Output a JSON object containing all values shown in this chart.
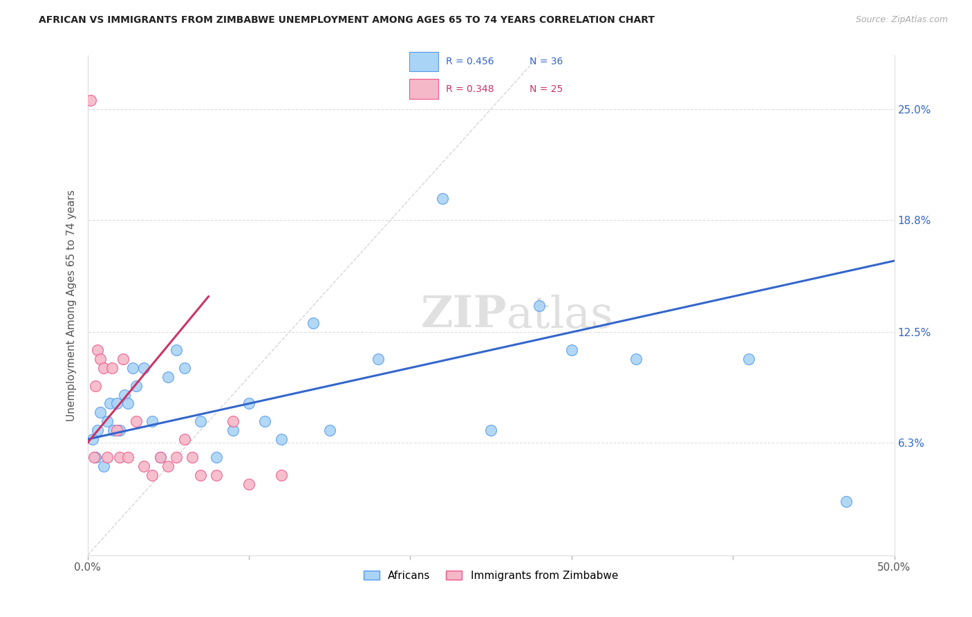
{
  "title": "AFRICAN VS IMMIGRANTS FROM ZIMBABWE UNEMPLOYMENT AMONG AGES 65 TO 74 YEARS CORRELATION CHART",
  "source": "Source: ZipAtlas.com",
  "ylabel_label": "Unemployment Among Ages 65 to 74 years",
  "legend_labels": [
    "Africans",
    "Immigrants from Zimbabwe"
  ],
  "legend_r_blue": "R = 0.456",
  "legend_n_blue": "N = 36",
  "legend_r_pink": "R = 0.348",
  "legend_n_pink": "N = 25",
  "blue_color": "#aad4f5",
  "pink_color": "#f5b8c8",
  "blue_line_color": "#3366cc",
  "pink_line_color": "#cc3366",
  "blue_edge_color": "#5599ee",
  "pink_edge_color": "#ee5588",
  "watermark": "ZIPatlas",
  "xlim": [
    0,
    50
  ],
  "ylim": [
    0,
    28
  ],
  "blue_scatter_x": [
    0.3,
    0.5,
    0.6,
    0.8,
    1.0,
    1.2,
    1.4,
    1.6,
    1.8,
    2.0,
    2.3,
    2.5,
    2.8,
    3.0,
    3.5,
    4.0,
    4.5,
    5.0,
    5.5,
    6.0,
    7.0,
    8.0,
    9.0,
    10.0,
    11.0,
    12.0,
    14.0,
    15.0,
    18.0,
    22.0,
    25.0,
    28.0,
    30.0,
    34.0,
    41.0,
    47.0
  ],
  "blue_scatter_y": [
    6.5,
    5.5,
    7.0,
    8.0,
    5.0,
    7.5,
    8.5,
    7.0,
    8.5,
    7.0,
    9.0,
    8.5,
    10.5,
    9.5,
    10.5,
    7.5,
    5.5,
    10.0,
    11.5,
    10.5,
    7.5,
    5.5,
    7.0,
    8.5,
    7.5,
    6.5,
    13.0,
    7.0,
    11.0,
    20.0,
    7.0,
    14.0,
    11.5,
    11.0,
    11.0,
    3.0
  ],
  "pink_scatter_x": [
    0.2,
    0.4,
    0.5,
    0.6,
    0.8,
    1.0,
    1.2,
    1.5,
    1.8,
    2.0,
    2.2,
    2.5,
    3.0,
    3.5,
    4.0,
    4.5,
    5.0,
    5.5,
    6.0,
    6.5,
    7.0,
    8.0,
    9.0,
    10.0,
    12.0
  ],
  "pink_scatter_y": [
    25.5,
    5.5,
    9.5,
    11.5,
    11.0,
    10.5,
    5.5,
    10.5,
    7.0,
    5.5,
    11.0,
    5.5,
    7.5,
    5.0,
    4.5,
    5.5,
    5.0,
    5.5,
    6.5,
    5.5,
    4.5,
    4.5,
    7.5,
    4.0,
    4.5
  ],
  "blue_trend_x0": 0,
  "blue_trend_y0": 6.5,
  "blue_trend_x1": 50,
  "blue_trend_y1": 16.5,
  "pink_trend_x0": 0,
  "pink_trend_y0": 6.3,
  "pink_trend_x1": 7.5,
  "pink_trend_y1": 14.5,
  "ref_line_x0": 0,
  "ref_line_y0": 0,
  "ref_line_x1": 28,
  "ref_line_y1": 28
}
